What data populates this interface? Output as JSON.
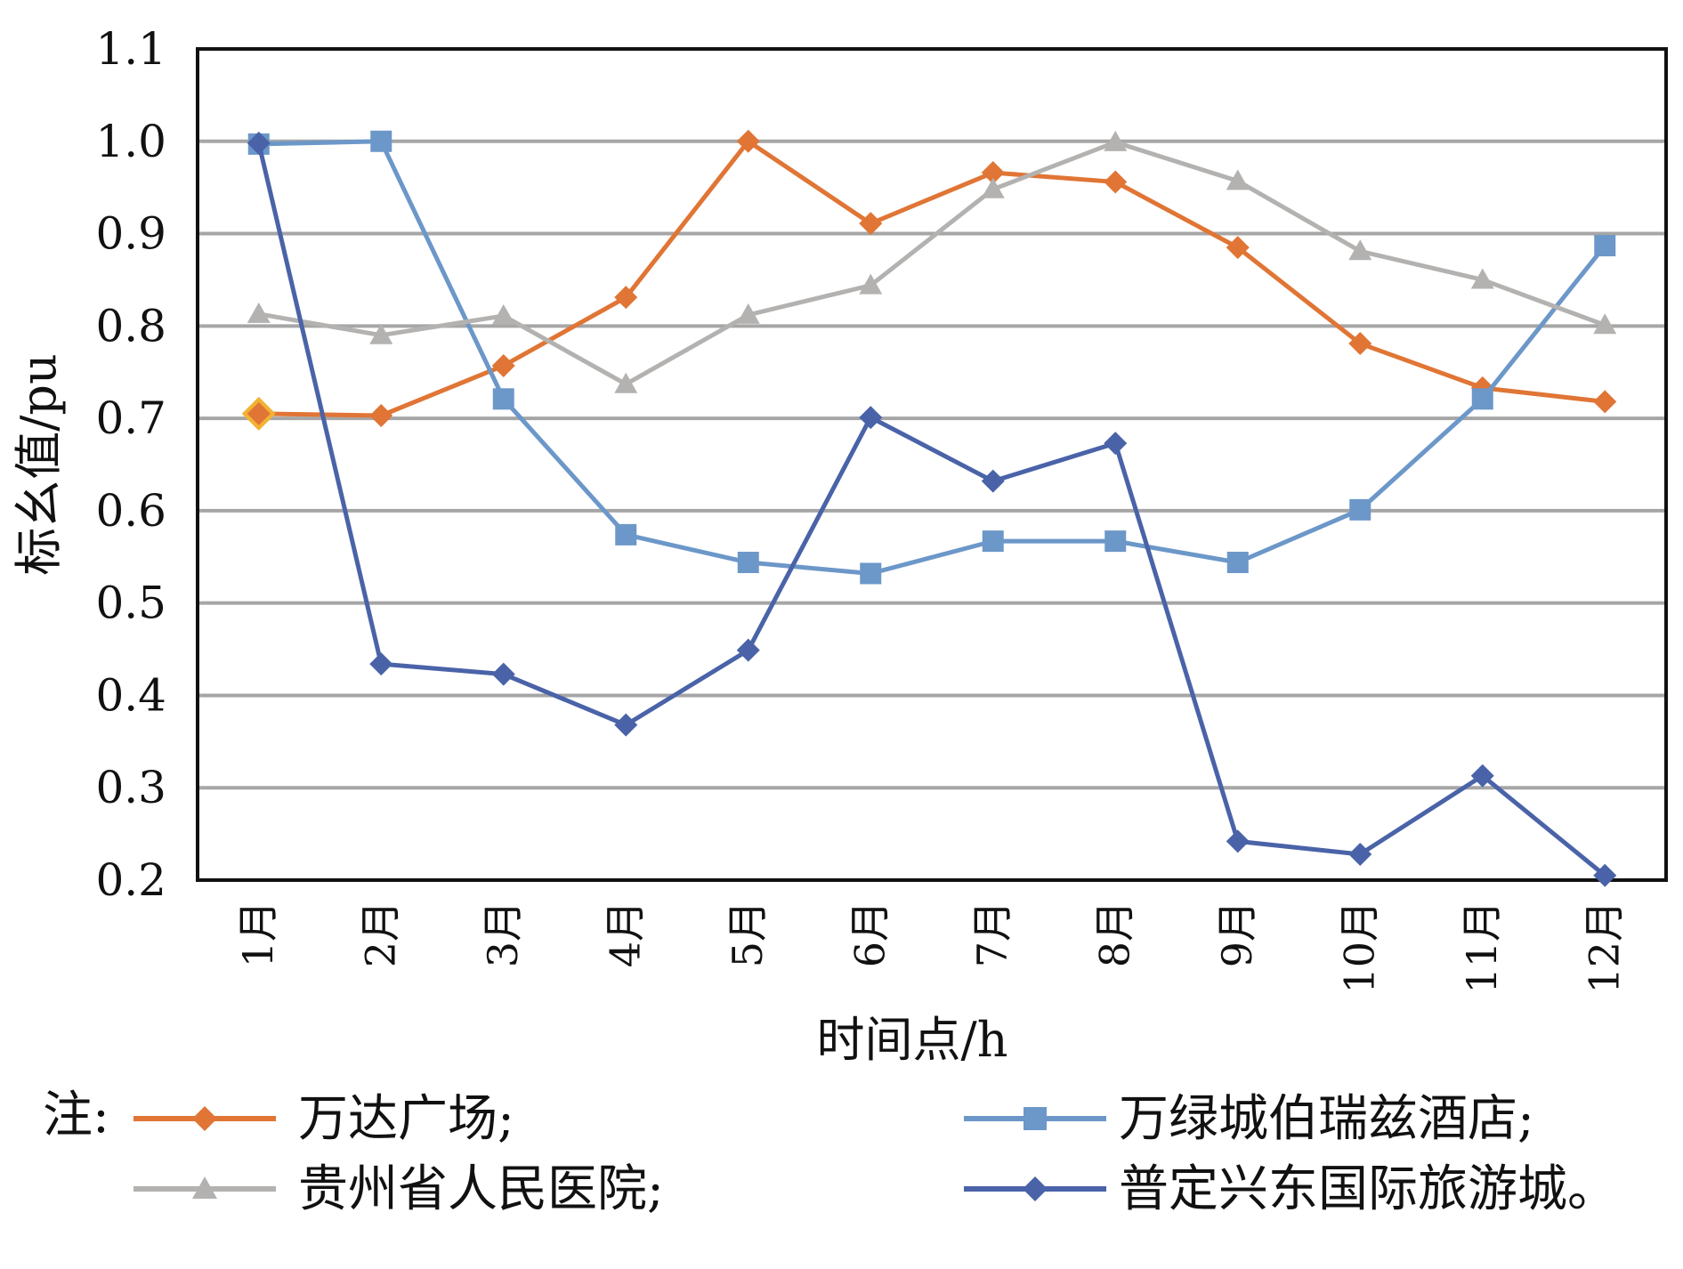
{
  "chart_data": {
    "type": "line",
    "categories": [
      "1月",
      "2月",
      "3月",
      "4月",
      "5月",
      "6月",
      "7月",
      "8月",
      "9月",
      "10月",
      "11月",
      "12月"
    ],
    "xlabel": "时间点/h",
    "ylabel": "标幺值/pu",
    "ylim": [
      0.2,
      1.1
    ],
    "yticks": [
      "0.2",
      "0.3",
      "0.4",
      "0.5",
      "0.6",
      "0.7",
      "0.8",
      "0.9",
      "1.0",
      "1.1"
    ],
    "grid": true,
    "legend_prefix": "注:",
    "legend_position": "bottom",
    "series": [
      {
        "name": "万达广场;",
        "color": "#E07535",
        "marker": "diamond",
        "values": [
          0.705,
          0.703,
          0.757,
          0.831,
          1.0,
          0.911,
          0.966,
          0.956,
          0.885,
          0.781,
          0.733,
          0.718
        ]
      },
      {
        "name": "万绿城伯瑞兹酒店;",
        "color": "#6C97C9",
        "marker": "square",
        "values": [
          0.997,
          1.0,
          0.721,
          0.574,
          0.544,
          0.532,
          0.567,
          0.567,
          0.544,
          0.601,
          0.721,
          0.887
        ]
      },
      {
        "name": "贵州省人民医院;",
        "color": "#B4B2B0",
        "marker": "triangle",
        "values": [
          0.813,
          0.79,
          0.811,
          0.737,
          0.812,
          0.844,
          0.948,
          0.999,
          0.957,
          0.881,
          0.85,
          0.801
        ]
      },
      {
        "name": "普定兴东国际旅游城。",
        "color": "#4A63A8",
        "marker": "diamond",
        "values": [
          0.998,
          0.434,
          0.423,
          0.368,
          0.449,
          0.701,
          0.632,
          0.673,
          0.242,
          0.228,
          0.313,
          0.205
        ]
      }
    ],
    "highlight_marker_color": "#F2B233"
  }
}
